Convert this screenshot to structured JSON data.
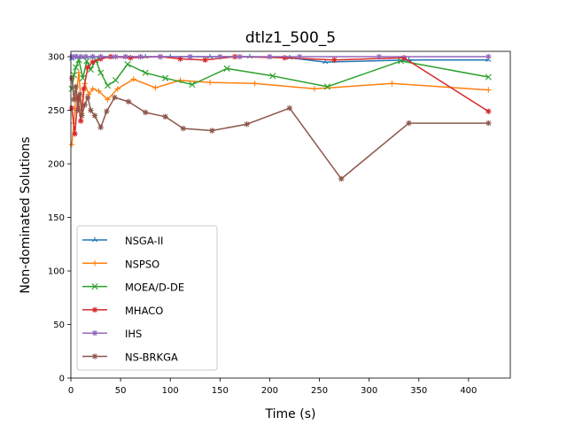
{
  "chart_data": {
    "type": "line",
    "title": "dtlz1_500_5",
    "xlabel": "Time (s)",
    "ylabel": "Non-dominated Solutions",
    "xlim": [
      0,
      442
    ],
    "ylim": [
      0,
      305
    ],
    "xticks": [
      0,
      50,
      100,
      150,
      200,
      250,
      300,
      350,
      400
    ],
    "yticks": [
      0,
      50,
      100,
      150,
      200,
      250,
      300
    ],
    "grid": false,
    "legend_position": "lower-left",
    "series": [
      {
        "name": "NSGA-II",
        "color": "#1f77b4",
        "marker": "tri",
        "points": [
          [
            1,
            298
          ],
          [
            3,
            300
          ],
          [
            6,
            300
          ],
          [
            10,
            300
          ],
          [
            15,
            300
          ],
          [
            22,
            300
          ],
          [
            30,
            300
          ],
          [
            40,
            300
          ],
          [
            55,
            300
          ],
          [
            75,
            300
          ],
          [
            100,
            300
          ],
          [
            140,
            300
          ],
          [
            180,
            300
          ],
          [
            220,
            299
          ],
          [
            256,
            295
          ],
          [
            340,
            297
          ],
          [
            420,
            297
          ]
        ]
      },
      {
        "name": "NSPSO",
        "color": "#ff7f0e",
        "marker": "plus",
        "points": [
          [
            1,
            218
          ],
          [
            3,
            238
          ],
          [
            5,
            262
          ],
          [
            8,
            285
          ],
          [
            11,
            247
          ],
          [
            14,
            275
          ],
          [
            18,
            265
          ],
          [
            22,
            270
          ],
          [
            28,
            268
          ],
          [
            37,
            260
          ],
          [
            47,
            270
          ],
          [
            63,
            279
          ],
          [
            85,
            271
          ],
          [
            110,
            278
          ],
          [
            140,
            276
          ],
          [
            185,
            275
          ],
          [
            245,
            270
          ],
          [
            323,
            275
          ],
          [
            420,
            269
          ]
        ]
      },
      {
        "name": "MOEA/D-DE",
        "color": "#2ca02c",
        "marker": "x",
        "points": [
          [
            1,
            270
          ],
          [
            3,
            283
          ],
          [
            5,
            290
          ],
          [
            8,
            297
          ],
          [
            12,
            280
          ],
          [
            16,
            296
          ],
          [
            20,
            288
          ],
          [
            25,
            297
          ],
          [
            30,
            285
          ],
          [
            37,
            273
          ],
          [
            45,
            278
          ],
          [
            57,
            293
          ],
          [
            75,
            285
          ],
          [
            95,
            280
          ],
          [
            122,
            274
          ],
          [
            157,
            289
          ],
          [
            203,
            282
          ],
          [
            258,
            272
          ],
          [
            332,
            296
          ],
          [
            420,
            281
          ]
        ]
      },
      {
        "name": "MHACO",
        "color": "#d62728",
        "marker": "star",
        "points": [
          [
            1,
            252
          ],
          [
            4,
            228
          ],
          [
            7,
            262
          ],
          [
            10,
            240
          ],
          [
            13,
            270
          ],
          [
            17,
            290
          ],
          [
            22,
            295
          ],
          [
            30,
            298
          ],
          [
            40,
            300
          ],
          [
            60,
            299
          ],
          [
            90,
            300
          ],
          [
            110,
            298
          ],
          [
            135,
            297
          ],
          [
            165,
            300
          ],
          [
            215,
            299
          ],
          [
            265,
            297
          ],
          [
            335,
            299
          ],
          [
            420,
            249
          ]
        ]
      },
      {
        "name": "IHS",
        "color": "#9467bd",
        "marker": "star",
        "points": [
          [
            1,
            300
          ],
          [
            5,
            300
          ],
          [
            10,
            300
          ],
          [
            15,
            300
          ],
          [
            22,
            300
          ],
          [
            30,
            300
          ],
          [
            45,
            300
          ],
          [
            55,
            300
          ],
          [
            70,
            300
          ],
          [
            90,
            300
          ],
          [
            120,
            300
          ],
          [
            150,
            300
          ],
          [
            170,
            300
          ],
          [
            200,
            300
          ],
          [
            230,
            300
          ],
          [
            310,
            300
          ],
          [
            420,
            300
          ]
        ]
      },
      {
        "name": "NS-BRKGA",
        "color": "#8c564b",
        "marker": "star",
        "points": [
          [
            1,
            280
          ],
          [
            3,
            260
          ],
          [
            5,
            272
          ],
          [
            7,
            250
          ],
          [
            9,
            265
          ],
          [
            11,
            245
          ],
          [
            14,
            255
          ],
          [
            17,
            262
          ],
          [
            20,
            250
          ],
          [
            24,
            245
          ],
          [
            30,
            234
          ],
          [
            36,
            249
          ],
          [
            44,
            262
          ],
          [
            58,
            258
          ],
          [
            75,
            248
          ],
          [
            95,
            244
          ],
          [
            113,
            233
          ],
          [
            142,
            231
          ],
          [
            177,
            237
          ],
          [
            220,
            252
          ],
          [
            272,
            186
          ],
          [
            340,
            238
          ],
          [
            420,
            238
          ]
        ]
      }
    ]
  }
}
